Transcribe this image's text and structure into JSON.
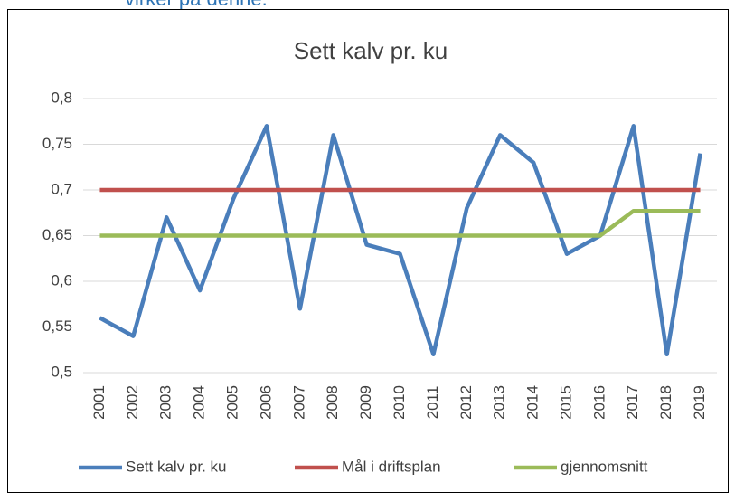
{
  "chart_data": {
    "type": "line",
    "annotation": "virker på denne.",
    "title": "Sett kalv pr. ku",
    "categories": [
      "2001",
      "2002",
      "2003",
      "2004",
      "2005",
      "2006",
      "2007",
      "2008",
      "2009",
      "2010",
      "2011",
      "2012",
      "2013",
      "2014",
      "2015",
      "2016",
      "2017",
      "2018",
      "2019"
    ],
    "series": [
      {
        "name": "Sett kalv pr. ku",
        "color": "#4a7ebb",
        "values": [
          0.56,
          0.54,
          0.67,
          0.59,
          0.69,
          0.77,
          0.57,
          0.76,
          0.64,
          0.63,
          0.52,
          0.68,
          0.76,
          0.73,
          0.63,
          0.65,
          0.77,
          0.52,
          0.74
        ]
      },
      {
        "name": "Mål i driftsplan",
        "color": "#c0504d",
        "values": [
          0.7,
          0.7,
          0.7,
          0.7,
          0.7,
          0.7,
          0.7,
          0.7,
          0.7,
          0.7,
          0.7,
          0.7,
          0.7,
          0.7,
          0.7,
          0.7,
          0.7,
          0.7,
          0.7
        ]
      },
      {
        "name": "gjennomsnitt",
        "color": "#9bbb59",
        "values": [
          0.65,
          0.65,
          0.65,
          0.65,
          0.65,
          0.65,
          0.65,
          0.65,
          0.65,
          0.65,
          0.65,
          0.65,
          0.65,
          0.65,
          0.65,
          0.65,
          0.677,
          0.677,
          0.677
        ]
      }
    ],
    "ylim": [
      0.5,
      0.8
    ],
    "yticks": [
      {
        "value": 0.5,
        "label": "0,5"
      },
      {
        "value": 0.55,
        "label": "0,55"
      },
      {
        "value": 0.6,
        "label": "0,6"
      },
      {
        "value": 0.65,
        "label": "0,65"
      },
      {
        "value": 0.7,
        "label": "0,7"
      },
      {
        "value": 0.75,
        "label": "0,75"
      },
      {
        "value": 0.8,
        "label": "0,8"
      }
    ],
    "grid": true
  }
}
